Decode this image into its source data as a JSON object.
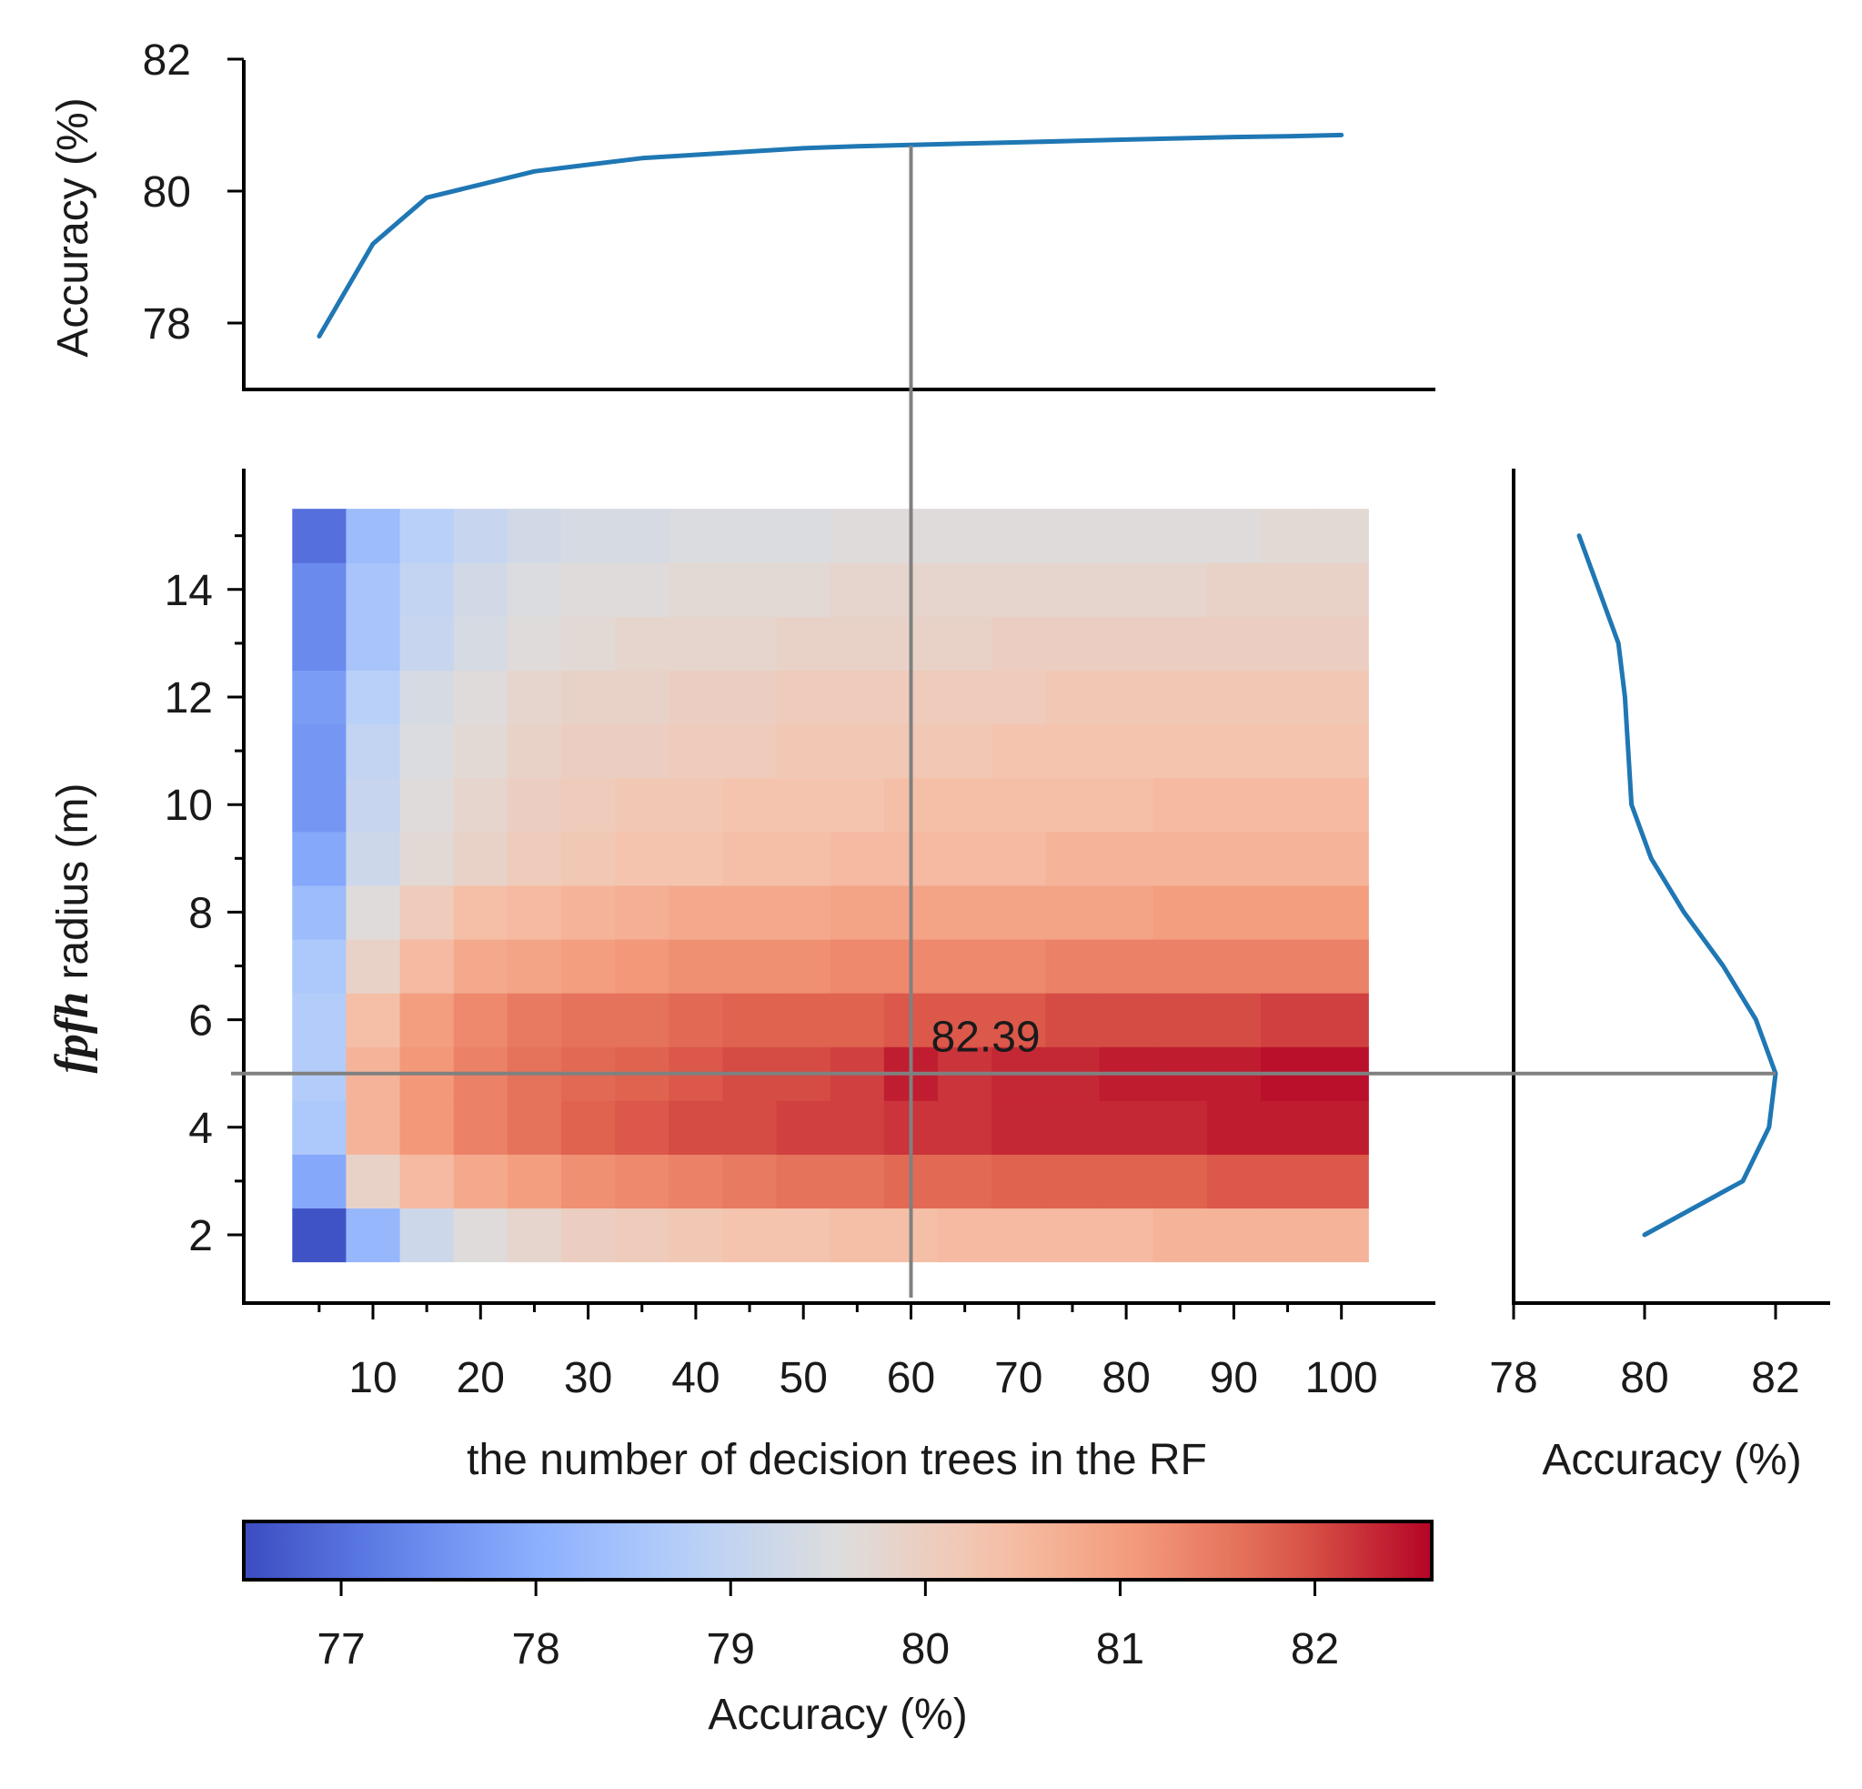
{
  "chart_data": {
    "type": "heatmap",
    "heatmap": {
      "x_values": [
        5,
        10,
        15,
        20,
        25,
        30,
        35,
        40,
        45,
        50,
        55,
        60,
        65,
        70,
        75,
        80,
        85,
        90,
        95,
        100
      ],
      "y_values": [
        2,
        3,
        4,
        5,
        6,
        7,
        8,
        9,
        10,
        11,
        12,
        13,
        14,
        15
      ],
      "x_ticks": [
        10,
        20,
        30,
        40,
        50,
        60,
        70,
        80,
        90,
        100
      ],
      "y_ticks": [
        2,
        4,
        6,
        8,
        10,
        12,
        14
      ],
      "xlabel": "the number of decision trees in the RF",
      "ylabel_italic": "fpfh",
      "ylabel_rest": " radius (m)",
      "values": [
        [
          76.6,
          78.2,
          79.2,
          79.6,
          79.8,
          80.0,
          80.1,
          80.2,
          80.3,
          80.3,
          80.4,
          80.4,
          80.5,
          80.5,
          80.5,
          80.5,
          80.6,
          80.6,
          80.6,
          80.6
        ],
        [
          77.9,
          79.9,
          80.5,
          80.8,
          81.0,
          81.2,
          81.3,
          81.4,
          81.5,
          81.6,
          81.6,
          81.7,
          81.7,
          81.8,
          81.8,
          81.8,
          81.8,
          81.9,
          81.9,
          81.9
        ],
        [
          78.6,
          80.6,
          81.1,
          81.4,
          81.6,
          81.8,
          81.9,
          82.0,
          82.0,
          82.1,
          82.1,
          82.2,
          82.2,
          82.3,
          82.3,
          82.3,
          82.3,
          82.4,
          82.4,
          82.4
        ],
        [
          78.7,
          80.6,
          81.1,
          81.4,
          81.6,
          81.7,
          81.8,
          81.9,
          82.0,
          82.0,
          82.1,
          82.39,
          82.2,
          82.3,
          82.3,
          82.4,
          82.4,
          82.4,
          82.5,
          82.5
        ],
        [
          78.7,
          80.4,
          81.0,
          81.3,
          81.5,
          81.6,
          81.6,
          81.7,
          81.8,
          81.8,
          81.8,
          81.9,
          81.9,
          81.9,
          82.0,
          82.0,
          82.0,
          82.0,
          82.1,
          82.1
        ],
        [
          78.6,
          79.9,
          80.5,
          80.8,
          80.9,
          81.0,
          81.1,
          81.2,
          81.2,
          81.2,
          81.3,
          81.3,
          81.3,
          81.3,
          81.4,
          81.4,
          81.4,
          81.4,
          81.4,
          81.4
        ],
        [
          78.3,
          79.6,
          80.1,
          80.4,
          80.5,
          80.6,
          80.7,
          80.8,
          80.8,
          80.8,
          80.9,
          80.9,
          80.9,
          80.9,
          80.9,
          80.9,
          81.0,
          81.0,
          81.0,
          81.0
        ],
        [
          77.9,
          79.2,
          79.7,
          79.9,
          80.1,
          80.2,
          80.3,
          80.3,
          80.4,
          80.4,
          80.5,
          80.5,
          80.5,
          80.5,
          80.6,
          80.6,
          80.6,
          80.6,
          80.6,
          80.6
        ],
        [
          77.6,
          79.1,
          79.6,
          79.8,
          80.0,
          80.1,
          80.2,
          80.2,
          80.3,
          80.3,
          80.3,
          80.4,
          80.4,
          80.4,
          80.4,
          80.4,
          80.5,
          80.5,
          80.5,
          80.5
        ],
        [
          77.6,
          79.0,
          79.5,
          79.7,
          79.9,
          80.0,
          80.0,
          80.1,
          80.1,
          80.2,
          80.2,
          80.2,
          80.2,
          80.3,
          80.3,
          80.3,
          80.3,
          80.3,
          80.3,
          80.3
        ],
        [
          77.7,
          78.8,
          79.4,
          79.6,
          79.8,
          79.9,
          79.9,
          80.0,
          80.0,
          80.1,
          80.1,
          80.1,
          80.1,
          80.1,
          80.2,
          80.2,
          80.2,
          80.2,
          80.2,
          80.2
        ],
        [
          77.4,
          78.5,
          79.1,
          79.4,
          79.6,
          79.7,
          79.8,
          79.8,
          79.8,
          79.9,
          79.9,
          79.9,
          79.9,
          80.0,
          80.0,
          80.0,
          80.0,
          80.0,
          80.0,
          80.0
        ],
        [
          77.4,
          78.5,
          79.0,
          79.3,
          79.5,
          79.6,
          79.6,
          79.7,
          79.7,
          79.7,
          79.8,
          79.8,
          79.8,
          79.8,
          79.8,
          79.8,
          79.8,
          79.9,
          79.9,
          79.9
        ],
        [
          77.0,
          78.3,
          78.8,
          79.1,
          79.3,
          79.4,
          79.4,
          79.5,
          79.5,
          79.5,
          79.6,
          79.6,
          79.6,
          79.6,
          79.6,
          79.6,
          79.6,
          79.6,
          79.7,
          79.7
        ]
      ]
    },
    "top_line": {
      "x": [
        5,
        10,
        15,
        20,
        25,
        30,
        35,
        40,
        45,
        50,
        55,
        60,
        65,
        70,
        75,
        80,
        85,
        90,
        95,
        100
      ],
      "y": [
        77.8,
        79.2,
        79.9,
        80.1,
        80.3,
        80.4,
        80.5,
        80.55,
        80.6,
        80.65,
        80.68,
        80.7,
        80.72,
        80.74,
        80.76,
        80.78,
        80.8,
        80.82,
        80.83,
        80.85
      ],
      "ylabel": "Accuracy (%)",
      "ylim": [
        77.0,
        82.0
      ],
      "y_ticks": [
        78,
        80,
        82
      ]
    },
    "right_line": {
      "y": [
        2,
        3,
        4,
        5,
        6,
        7,
        8,
        9,
        10,
        11,
        12,
        13,
        14,
        15
      ],
      "x": [
        80.0,
        81.5,
        81.9,
        82.0,
        81.7,
        81.2,
        80.6,
        80.1,
        79.8,
        79.75,
        79.7,
        79.6,
        79.3,
        79.0
      ],
      "xlabel": "Accuracy (%)",
      "xlim": [
        78.0,
        82.9
      ],
      "x_ticks": [
        78,
        80,
        82
      ]
    },
    "colorbar": {
      "label": "Accuracy (%)",
      "range": [
        76.5,
        82.6
      ],
      "ticks": [
        77,
        78,
        79,
        80,
        81,
        82
      ],
      "colormap": "coolwarm"
    },
    "guides": {
      "x": 60,
      "y": 5
    },
    "annotation": {
      "text": "82.39",
      "x": 60,
      "y": 5
    }
  }
}
